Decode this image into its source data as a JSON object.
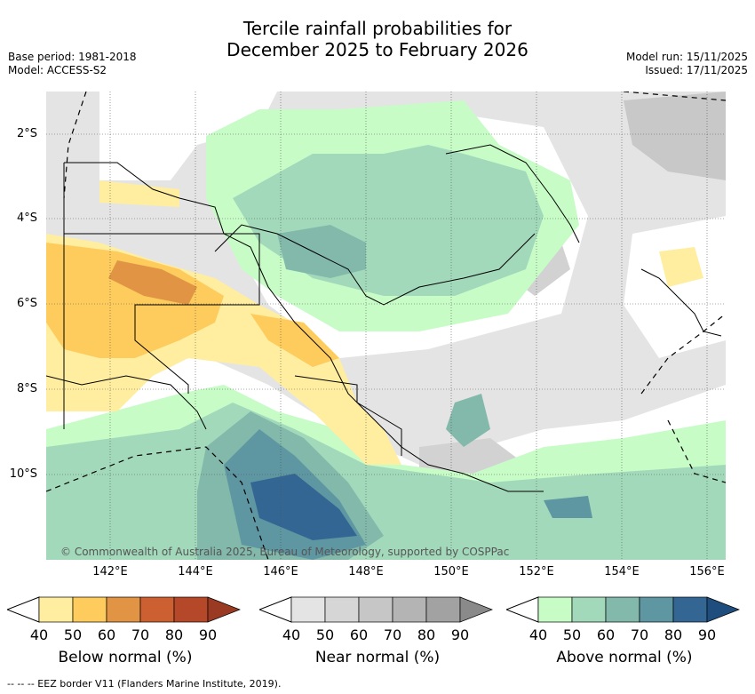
{
  "title_line1": "Tercile rainfall probabilities for",
  "title_line2": "December 2025 to February 2026",
  "base_period": "Base period: 1981-2018",
  "model": "Model: ACCESS-S2",
  "model_run": "Model run: 15/11/2025",
  "issued": "Issued: 17/11/2025",
  "copyright": "© Commonwealth of Australia 2025, Bureau of Meteorology, supported by COSPPac",
  "lat_ticks": [
    "2°S",
    "4°S",
    "6°S",
    "8°S",
    "10°S"
  ],
  "lon_ticks": [
    "142°E",
    "144°E",
    "146°E",
    "148°E",
    "150°E",
    "152°E",
    "154°E",
    "156°E"
  ],
  "legends": [
    {
      "title": "Below normal (%)",
      "labels": [
        "40",
        "50",
        "60",
        "70",
        "80",
        "90"
      ],
      "colors": [
        "#ffeda0",
        "#fecc5c",
        "#e09444",
        "#cd6030",
        "#b44828",
        "#9a3a22"
      ]
    },
    {
      "title": "Near normal (%)",
      "labels": [
        "40",
        "50",
        "60",
        "70",
        "80",
        "90"
      ],
      "colors": [
        "#e4e4e4",
        "#d6d6d6",
        "#c6c6c6",
        "#b4b4b4",
        "#a2a2a2",
        "#8a8a8a"
      ]
    },
    {
      "title": "Above normal (%)",
      "labels": [
        "40",
        "50",
        "60",
        "70",
        "80",
        "90"
      ],
      "colors": [
        "#c7fcc7",
        "#a3d9bb",
        "#82b9aa",
        "#5e96a2",
        "#336693",
        "#1f4e7e"
      ]
    }
  ],
  "footer": "--  --  -- EEZ border V11 (Flanders Marine Institute, 2019)."
}
